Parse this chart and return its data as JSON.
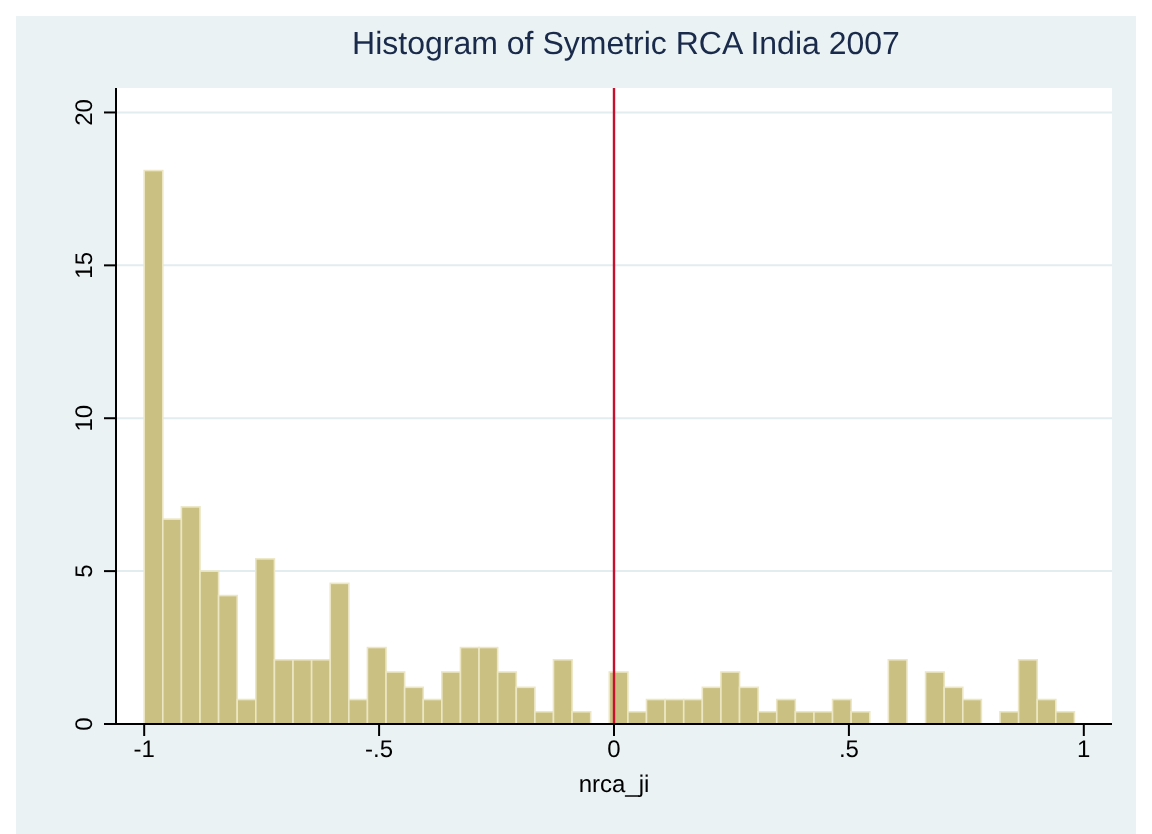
{
  "chart_data": {
    "type": "histogram",
    "title": "Histogram of Symetric RCA India 2007",
    "xlabel": "nrca_ji",
    "bins": [
      -1,
      -0.9604,
      -0.9208,
      -0.8812,
      -0.8416,
      -0.802,
      -0.7624,
      -0.7228,
      -0.6832,
      -0.6436,
      -0.604,
      -0.5644,
      -0.5248,
      -0.4852,
      -0.4456,
      -0.406,
      -0.3664,
      -0.3268,
      -0.2872,
      -0.2476,
      -0.208,
      -0.1684,
      -0.1288,
      -0.0892,
      -0.0496,
      -0.01,
      0.0296,
      0.0692,
      0.1088,
      0.1484,
      0.188,
      0.2276,
      0.2672,
      0.3068,
      0.3464,
      0.386,
      0.4256,
      0.4652,
      0.5048,
      0.5444,
      0.584,
      0.6236,
      0.6632,
      0.7028,
      0.7424,
      0.782,
      0.8216,
      0.8612,
      0.9008,
      0.9404,
      0.98
    ],
    "values": [
      18.1,
      6.7,
      7.1,
      5.0,
      4.2,
      0.8,
      5.4,
      2.1,
      2.1,
      2.1,
      4.6,
      0.8,
      2.5,
      1.7,
      1.2,
      0.8,
      1.7,
      2.5,
      2.5,
      1.7,
      1.2,
      0.4,
      2.1,
      0.4,
      0,
      1.7,
      0.4,
      0.8,
      0.8,
      0.8,
      1.2,
      1.7,
      1.2,
      0.4,
      0.8,
      0.4,
      0.4,
      0.8,
      0.4,
      0,
      2.1,
      0,
      1.7,
      1.2,
      0.8,
      0,
      0.4,
      2.1,
      0.8,
      0.4
    ],
    "color": "#c9c082",
    "xlim": [
      -1.06,
      1.06
    ],
    "xticks": [
      -1,
      {
        "value": -0.5,
        "label": "-.5"
      },
      0,
      {
        "value": 0.5,
        "label": ".5"
      },
      1
    ],
    "ylim": [
      0,
      20.8
    ],
    "yticks": [
      0,
      5,
      10,
      15,
      20
    ],
    "grid": "y",
    "ref_lines": [
      {
        "axis": "x",
        "value": 0,
        "label": null,
        "color": "#c8102e"
      }
    ]
  }
}
